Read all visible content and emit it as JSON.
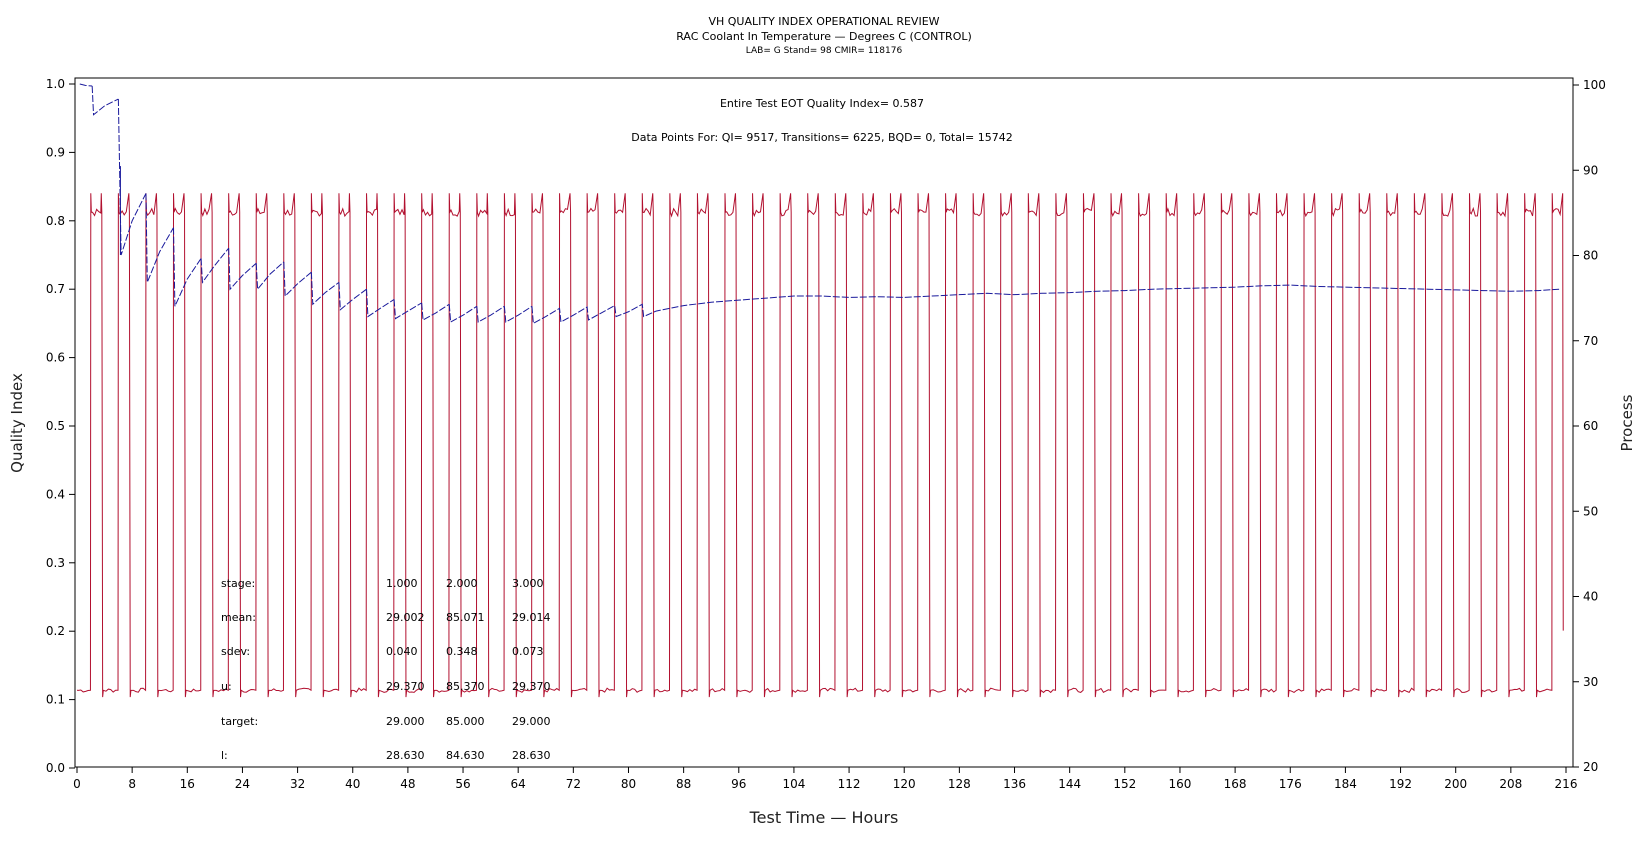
{
  "chart_data": {
    "type": "line",
    "title": "VH QUALITY INDEX OPERATIONAL REVIEW",
    "subtitle": "RAC Coolant In Temperature — Degrees C (CONTROL)",
    "subtitle2": "LAB= G Stand= 98 CMIR= 118176",
    "xlabel": "Test Time — Hours",
    "ylabel_left": "Quality Index",
    "ylabel_right": "Process",
    "xlim": [
      0,
      216
    ],
    "ylim_left": [
      0.0,
      1.0
    ],
    "ylim_right": [
      20,
      100
    ],
    "xticks": [
      0,
      8,
      16,
      24,
      32,
      40,
      48,
      56,
      64,
      72,
      80,
      88,
      96,
      104,
      112,
      120,
      128,
      136,
      144,
      152,
      160,
      168,
      176,
      184,
      192,
      200,
      208,
      216
    ],
    "yticks_left": [
      "0.0",
      "0.1",
      "0.2",
      "0.3",
      "0.4",
      "0.5",
      "0.6",
      "0.7",
      "0.8",
      "0.9",
      "1.0"
    ],
    "yticks_right": [
      "20",
      "30",
      "40",
      "50",
      "60",
      "70",
      "80",
      "90",
      "100"
    ],
    "annotations": {
      "eot": "Entire Test EOT Quality Index=   0.587",
      "points": "Data Points For: QI=  9517, Transitions=  6225, BQD=     0, Total=  15742"
    },
    "stats_table": [
      {
        "label": "stage:",
        "values": [
          "1.000",
          "2.000",
          "3.000"
        ]
      },
      {
        "label": "mean:",
        "values": [
          "29.002",
          "85.071",
          "29.014"
        ]
      },
      {
        "label": "sdev:",
        "values": [
          "0.040",
          "0.348",
          "0.073"
        ]
      },
      {
        "label": "u:",
        "values": [
          "29.370",
          "85.370",
          "29.370"
        ]
      },
      {
        "label": "target:",
        "values": [
          "29.000",
          "85.000",
          "29.000"
        ]
      },
      {
        "label": "l:",
        "values": [
          "28.630",
          "84.630",
          "28.630"
        ]
      }
    ],
    "series": [
      {
        "axis": "right",
        "color": "#b2102f",
        "cycle": {
          "period_hours": 4,
          "high_start_hours": 2.0,
          "high_end_hours": 3.6,
          "first_cycle_start": 0
        },
        "levels": {
          "low": 29.0,
          "high": 85.07,
          "spike": 87.3,
          "undershoot": 28.2,
          "end_value": 36.0,
          "end_hours": 214.5
        }
      },
      {
        "axis": "left",
        "color": "#1a1a9c",
        "x": [
          0.4,
          1.2,
          2.2,
          2.4,
          4.0,
          6.0,
          6.4,
          8.0,
          9.0,
          10.0,
          10.2,
          12.0,
          14.0,
          14.2,
          16.0,
          18.0,
          18.2,
          20.0,
          22.0,
          22.2,
          24.0,
          26.0,
          26.2,
          28.0,
          30.0,
          30.2,
          32.0,
          34.0,
          34.2,
          36.0,
          38.0,
          38.2,
          40.0,
          42.0,
          42.2,
          44.0,
          46.0,
          46.2,
          48.0,
          50.0,
          50.2,
          52.0,
          54.0,
          54.2,
          56.0,
          58.0,
          58.2,
          60.0,
          62.0,
          62.2,
          64.0,
          66.0,
          66.2,
          68.0,
          70.0,
          70.2,
          72.0,
          74.0,
          74.2,
          76.0,
          78.0,
          78.2,
          80.0,
          82.0,
          82.2,
          84.0,
          86.0,
          88.0,
          92.0,
          96.0,
          100.0,
          104.0,
          108.0,
          112.0,
          116.0,
          120.0,
          124.0,
          128.0,
          132.0,
          136.0,
          140.0,
          144.0,
          148.0,
          152.0,
          156.0,
          160.0,
          164.0,
          168.0,
          172.0,
          176.0,
          180.0,
          184.0,
          188.0,
          192.0,
          196.0,
          200.0,
          204.0,
          208.0,
          212.0,
          215.0
        ],
        "y": [
          1.0,
          0.998,
          0.997,
          0.955,
          0.968,
          0.978,
          0.75,
          0.8,
          0.82,
          0.84,
          0.71,
          0.755,
          0.79,
          0.675,
          0.715,
          0.745,
          0.71,
          0.735,
          0.76,
          0.7,
          0.72,
          0.738,
          0.7,
          0.722,
          0.74,
          0.69,
          0.708,
          0.725,
          0.678,
          0.695,
          0.71,
          0.67,
          0.685,
          0.7,
          0.66,
          0.672,
          0.685,
          0.657,
          0.668,
          0.68,
          0.655,
          0.665,
          0.678,
          0.652,
          0.662,
          0.675,
          0.652,
          0.662,
          0.675,
          0.652,
          0.662,
          0.675,
          0.65,
          0.66,
          0.672,
          0.652,
          0.662,
          0.674,
          0.655,
          0.665,
          0.676,
          0.66,
          0.667,
          0.678,
          0.66,
          0.668,
          0.672,
          0.676,
          0.681,
          0.684,
          0.687,
          0.69,
          0.69,
          0.688,
          0.689,
          0.688,
          0.69,
          0.692,
          0.694,
          0.692,
          0.694,
          0.695,
          0.697,
          0.698,
          0.7,
          0.701,
          0.702,
          0.703,
          0.705,
          0.706,
          0.704,
          0.703,
          0.702,
          0.701,
          0.7,
          0.699,
          0.698,
          0.697,
          0.698,
          0.7
        ]
      }
    ]
  }
}
